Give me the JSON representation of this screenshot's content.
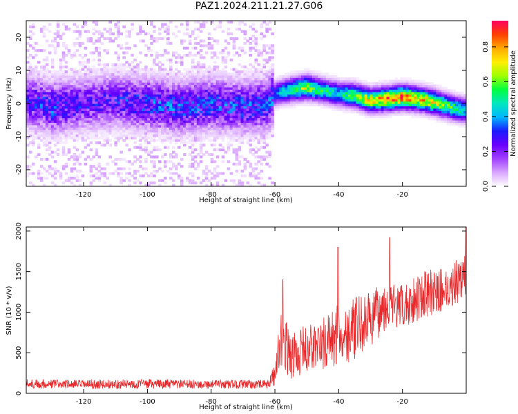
{
  "title": "PAZ1.2024.211.21.27.G06",
  "colors": {
    "snr_line": "#e8292b",
    "colormap": [
      "#ffffff",
      "#d9a6ff",
      "#a040ff",
      "#6a00ff",
      "#1a1aff",
      "#00b7ff",
      "#00e6c0",
      "#00ff40",
      "#9dff00",
      "#ffee00",
      "#ffaa00",
      "#ff4000",
      "#ff0060"
    ]
  },
  "chart_data": [
    {
      "type": "heatmap",
      "description_of_content": "spectrogram",
      "xlabel": "Height of straight line (km)",
      "ylabel": "Frequency (Hz)",
      "xlim": [
        -138,
        0
      ],
      "ylim": [
        -25,
        25
      ],
      "xticks": [
        -120,
        -100,
        -80,
        -60,
        -40,
        -20
      ],
      "yticks": [
        -20,
        -10,
        0,
        10,
        20
      ],
      "colorbar": {
        "label": "Normalized spectral amplitude",
        "range": [
          0,
          0.95
        ],
        "ticks": [
          0.0,
          0.2,
          0.4,
          0.6,
          0.8
        ]
      },
      "ridge": {
        "x": [
          -138,
          -130,
          -120,
          -110,
          -100,
          -90,
          -80,
          -70,
          -62,
          -60,
          -56,
          -50,
          -45,
          -40,
          -35,
          -30,
          -25,
          -20,
          -15,
          -10,
          -5,
          0
        ],
        "freq": [
          1,
          -1,
          0,
          1,
          0,
          -1,
          0,
          -1,
          0,
          3,
          4,
          5,
          4,
          3,
          2.5,
          1,
          1.5,
          2,
          1.5,
          0.5,
          -1,
          -2
        ],
        "amplitude": [
          0.25,
          0.3,
          0.25,
          0.25,
          0.3,
          0.3,
          0.3,
          0.3,
          0.3,
          0.35,
          0.5,
          0.65,
          0.5,
          0.45,
          0.6,
          0.7,
          0.8,
          0.85,
          0.75,
          0.7,
          0.55,
          0.45
        ]
      }
    },
    {
      "type": "line",
      "xlabel": "Height of straight line (km)",
      "ylabel": "SNR (10 * v/v)",
      "xlim": [
        -138,
        0
      ],
      "ylim": [
        0,
        2050
      ],
      "xticks": [
        -120,
        -100,
        -80,
        -60,
        -40,
        -20
      ],
      "yticks": [
        0,
        500,
        1000,
        1500,
        2000
      ],
      "envelope": {
        "x": [
          -138,
          -120,
          -100,
          -80,
          -62,
          -60,
          -58,
          -55,
          -50,
          -45,
          -40,
          -35,
          -30,
          -25,
          -20,
          -15,
          -10,
          -5,
          0
        ],
        "mean": [
          120,
          110,
          115,
          110,
          110,
          250,
          700,
          450,
          550,
          600,
          700,
          800,
          900,
          1100,
          1050,
          1200,
          1250,
          1300,
          1500
        ],
        "spread": [
          60,
          55,
          60,
          55,
          55,
          150,
          350,
          300,
          300,
          330,
          400,
          380,
          350,
          300,
          280,
          300,
          280,
          260,
          300
        ]
      },
      "peaks": [
        {
          "x": -40.2,
          "y": 1800
        },
        {
          "x": -24,
          "y": 1920
        },
        {
          "x": -57.5,
          "y": 1400
        },
        {
          "x": 0,
          "y": 2050
        }
      ]
    }
  ]
}
